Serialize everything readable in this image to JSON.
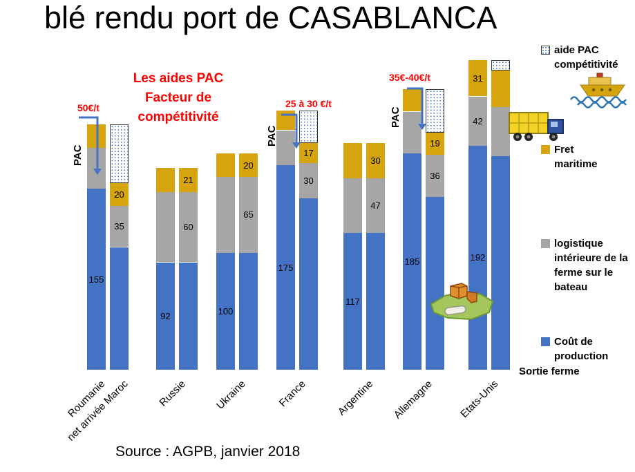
{
  "title": "blé rendu port de CASABLANCA",
  "source": "Source : AGPB, janvier 2018",
  "pac_heading": [
    "Les aides PAC",
    "Facteur de",
    "compétitivité"
  ],
  "colors": {
    "production": "#4472C4",
    "logistics": "#A6A6A6",
    "fret": "#D5A40E",
    "aide_dot": "#4472C4",
    "annotation_red": "#FF0000",
    "arrow_blue": "#4472C4"
  },
  "legend": {
    "aide_label": "aide PAC compétitivité",
    "fret_label": "Fret maritime",
    "logistics_label": "logistique intérieure de la ferme sur le bateau",
    "production_label": "Coût de production",
    "sortie_label": "Sortie ferme",
    "icons": [
      "ship-icon",
      "truck-icon",
      "farm-goods-clipart-icon"
    ]
  },
  "chart_data": {
    "type": "bar",
    "stacked": true,
    "unit": "€/t",
    "ylim": [
      0,
      280
    ],
    "grid": false,
    "legend_position": "right",
    "pac_label": "PAC",
    "series": [
      "Coût de production Sortie ferme",
      "logistique intérieure de la ferme sur le bateau",
      "Fret maritime",
      "aide PAC compétitivité"
    ],
    "groups": [
      {
        "pac_note": "50€/t",
        "bars": [
          {
            "label": "Roumanie",
            "production": 155,
            "logistics": 35,
            "fret": 20,
            "aide": 0,
            "shown": {
              "production": "155"
            }
          },
          {
            "label": "net arrivée Maroc",
            "production": 105,
            "logistics": 35,
            "fret": 20,
            "aide": 50,
            "shown": {
              "logistics": "35",
              "fret": "20"
            }
          }
        ]
      },
      {
        "pac_note": null,
        "bars": [
          {
            "label": "Russie",
            "production": 92,
            "logistics": 60,
            "fret": 21,
            "aide": 0,
            "shown": {
              "production": "92"
            }
          },
          {
            "label": "",
            "production": 92,
            "logistics": 60,
            "fret": 21,
            "aide": 0,
            "shown": {
              "logistics": "60",
              "fret": "21"
            }
          }
        ]
      },
      {
        "pac_note": null,
        "bars": [
          {
            "label": "Ukraine",
            "production": 100,
            "logistics": 65,
            "fret": 20,
            "aide": 0,
            "shown": {
              "production": "100"
            }
          },
          {
            "label": "",
            "production": 100,
            "logistics": 65,
            "fret": 20,
            "aide": 0,
            "shown": {
              "logistics": "65",
              "fret": "20"
            }
          }
        ]
      },
      {
        "pac_note": "25 à 30 €/t",
        "bars": [
          {
            "label": "France",
            "production": 175,
            "logistics": 30,
            "fret": 17,
            "aide": 0,
            "shown": {
              "production": "175"
            }
          },
          {
            "label": "",
            "production": 147,
            "logistics": 30,
            "fret": 17,
            "aide": 28,
            "shown": {
              "logistics": "30",
              "fret": "17"
            }
          }
        ]
      },
      {
        "pac_note": null,
        "bars": [
          {
            "label": "Argentine",
            "production": 117,
            "logistics": 47,
            "fret": 30,
            "aide": 0,
            "shown": {
              "production": "117"
            }
          },
          {
            "label": "",
            "production": 117,
            "logistics": 47,
            "fret": 30,
            "aide": 0,
            "shown": {
              "logistics": "47",
              "fret": "30"
            }
          }
        ]
      },
      {
        "pac_note": "35€-40€/t",
        "bars": [
          {
            "label": "Allemagne",
            "production": 185,
            "logistics": 36,
            "fret": 19,
            "aide": 0,
            "shown": {
              "production": "185"
            }
          },
          {
            "label": "",
            "production": 148,
            "logistics": 36,
            "fret": 19,
            "aide": 37,
            "shown": {
              "logistics": "36",
              "fret": "19"
            }
          }
        ]
      },
      {
        "pac_note": null,
        "bars": [
          {
            "label": "Etats-Unis",
            "production": 192,
            "logistics": 42,
            "fret": 31,
            "aide": 0,
            "shown": {
              "production": "192",
              "logistics": "42",
              "fret": "31"
            }
          },
          {
            "label": "",
            "production": 183,
            "logistics": 42,
            "fret": 31,
            "aide": 9,
            "shown": {}
          }
        ]
      }
    ]
  }
}
